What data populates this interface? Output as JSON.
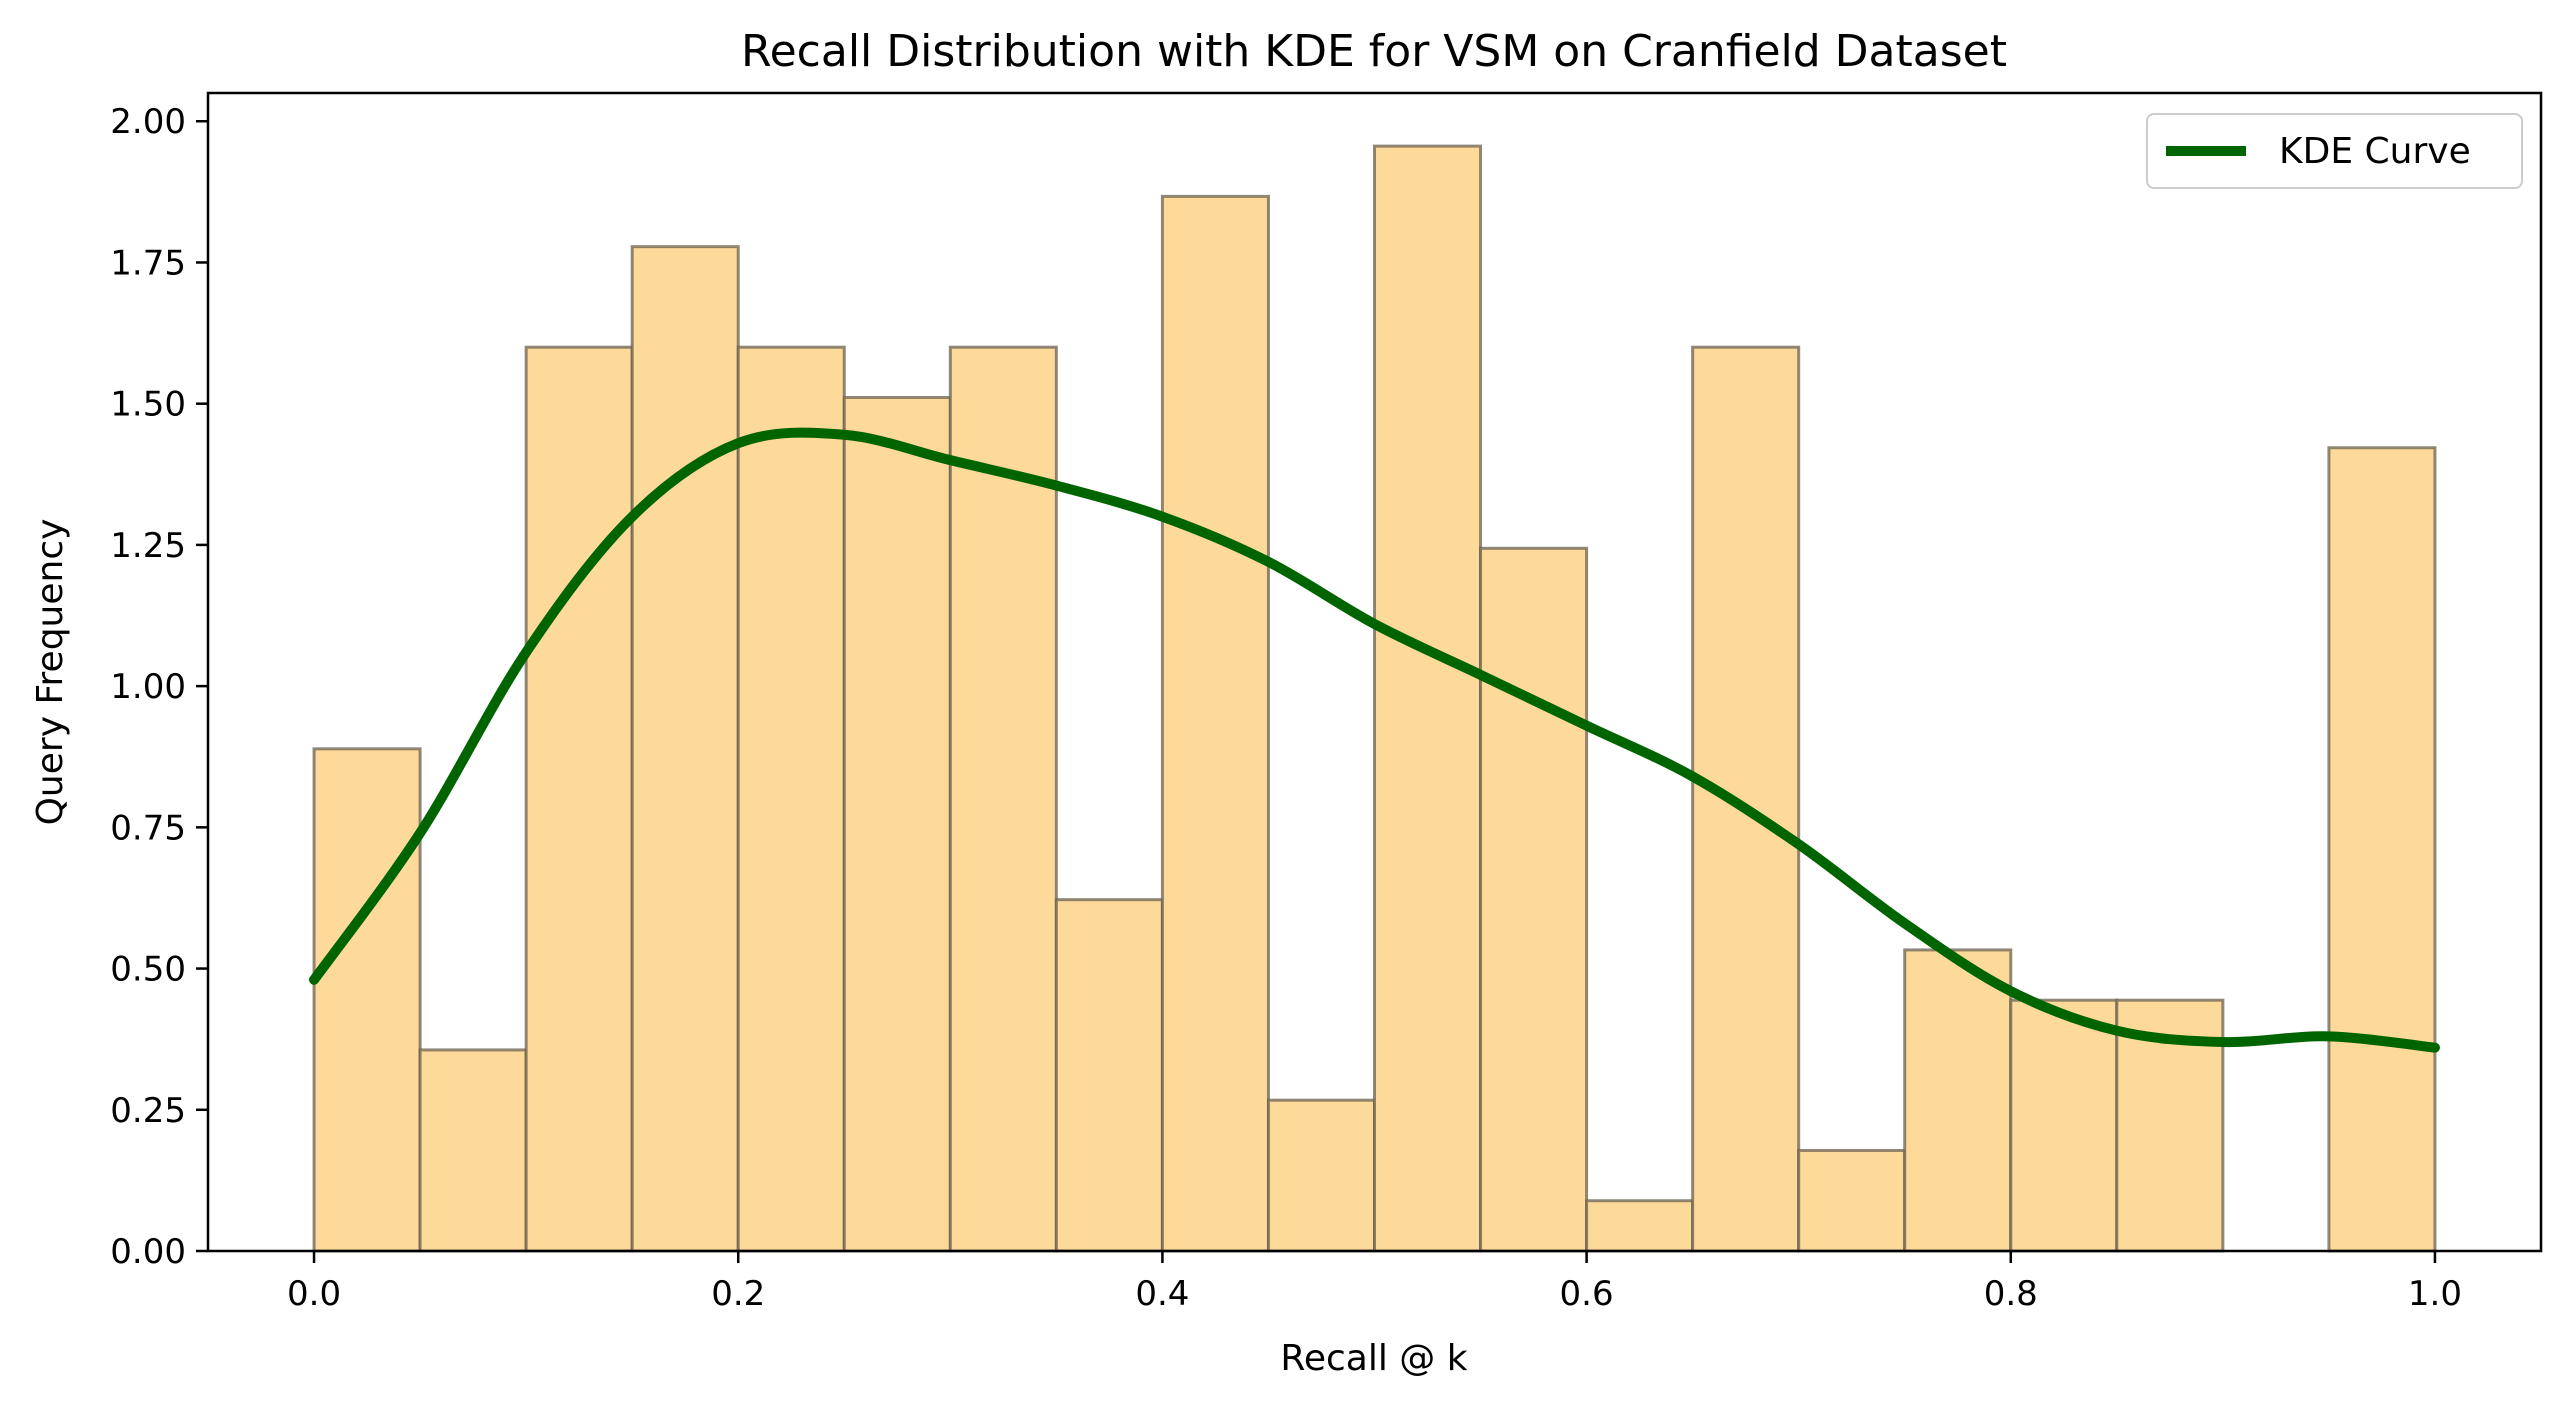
{
  "chart_data": {
    "type": "bar",
    "title": "Recall Distribution with KDE for VSM on Cranfield Dataset",
    "xlabel": "Recall @ k",
    "ylabel": "Query Frequency",
    "xlim": [
      -0.05,
      1.05
    ],
    "ylim": [
      0,
      2.05
    ],
    "x_ticks": [
      0.0,
      0.2,
      0.4,
      0.6,
      0.8,
      1.0
    ],
    "x_tick_labels": [
      "0.0",
      "0.2",
      "0.4",
      "0.6",
      "0.8",
      "1.0"
    ],
    "y_ticks": [
      0.0,
      0.25,
      0.5,
      0.75,
      1.0,
      1.25,
      1.5,
      1.75,
      2.0
    ],
    "y_tick_labels": [
      "0.00",
      "0.25",
      "0.50",
      "0.75",
      "1.00",
      "1.25",
      "1.50",
      "1.75",
      "2.00"
    ],
    "bin_edges": [
      0.0,
      0.05,
      0.1,
      0.15,
      0.2,
      0.25,
      0.3,
      0.35,
      0.4,
      0.45,
      0.5,
      0.55,
      0.6,
      0.65,
      0.7,
      0.75,
      0.8,
      0.85,
      0.9,
      0.95,
      1.0
    ],
    "values": [
      0.889,
      0.356,
      1.6,
      1.778,
      1.6,
      1.511,
      1.6,
      0.622,
      1.867,
      0.267,
      1.956,
      1.244,
      0.089,
      1.6,
      0.178,
      0.533,
      0.444,
      0.444,
      0.0,
      1.422
    ],
    "bar_color": "#fdd99a",
    "bar_edge_color": "#6b6250",
    "kde": {
      "name": "KDE Curve",
      "color": "#006400",
      "x": [
        0.0,
        0.05,
        0.1,
        0.15,
        0.2,
        0.25,
        0.3,
        0.35,
        0.4,
        0.45,
        0.5,
        0.55,
        0.6,
        0.65,
        0.7,
        0.75,
        0.8,
        0.85,
        0.9,
        0.95,
        1.0
      ],
      "y": [
        0.48,
        0.74,
        1.06,
        1.3,
        1.43,
        1.445,
        1.4,
        1.355,
        1.3,
        1.22,
        1.11,
        1.02,
        0.93,
        0.84,
        0.72,
        0.58,
        0.46,
        0.39,
        0.37,
        0.38,
        0.36
      ]
    },
    "grid": false,
    "legend": {
      "position": "top-right",
      "entries": [
        "KDE Curve"
      ]
    }
  }
}
